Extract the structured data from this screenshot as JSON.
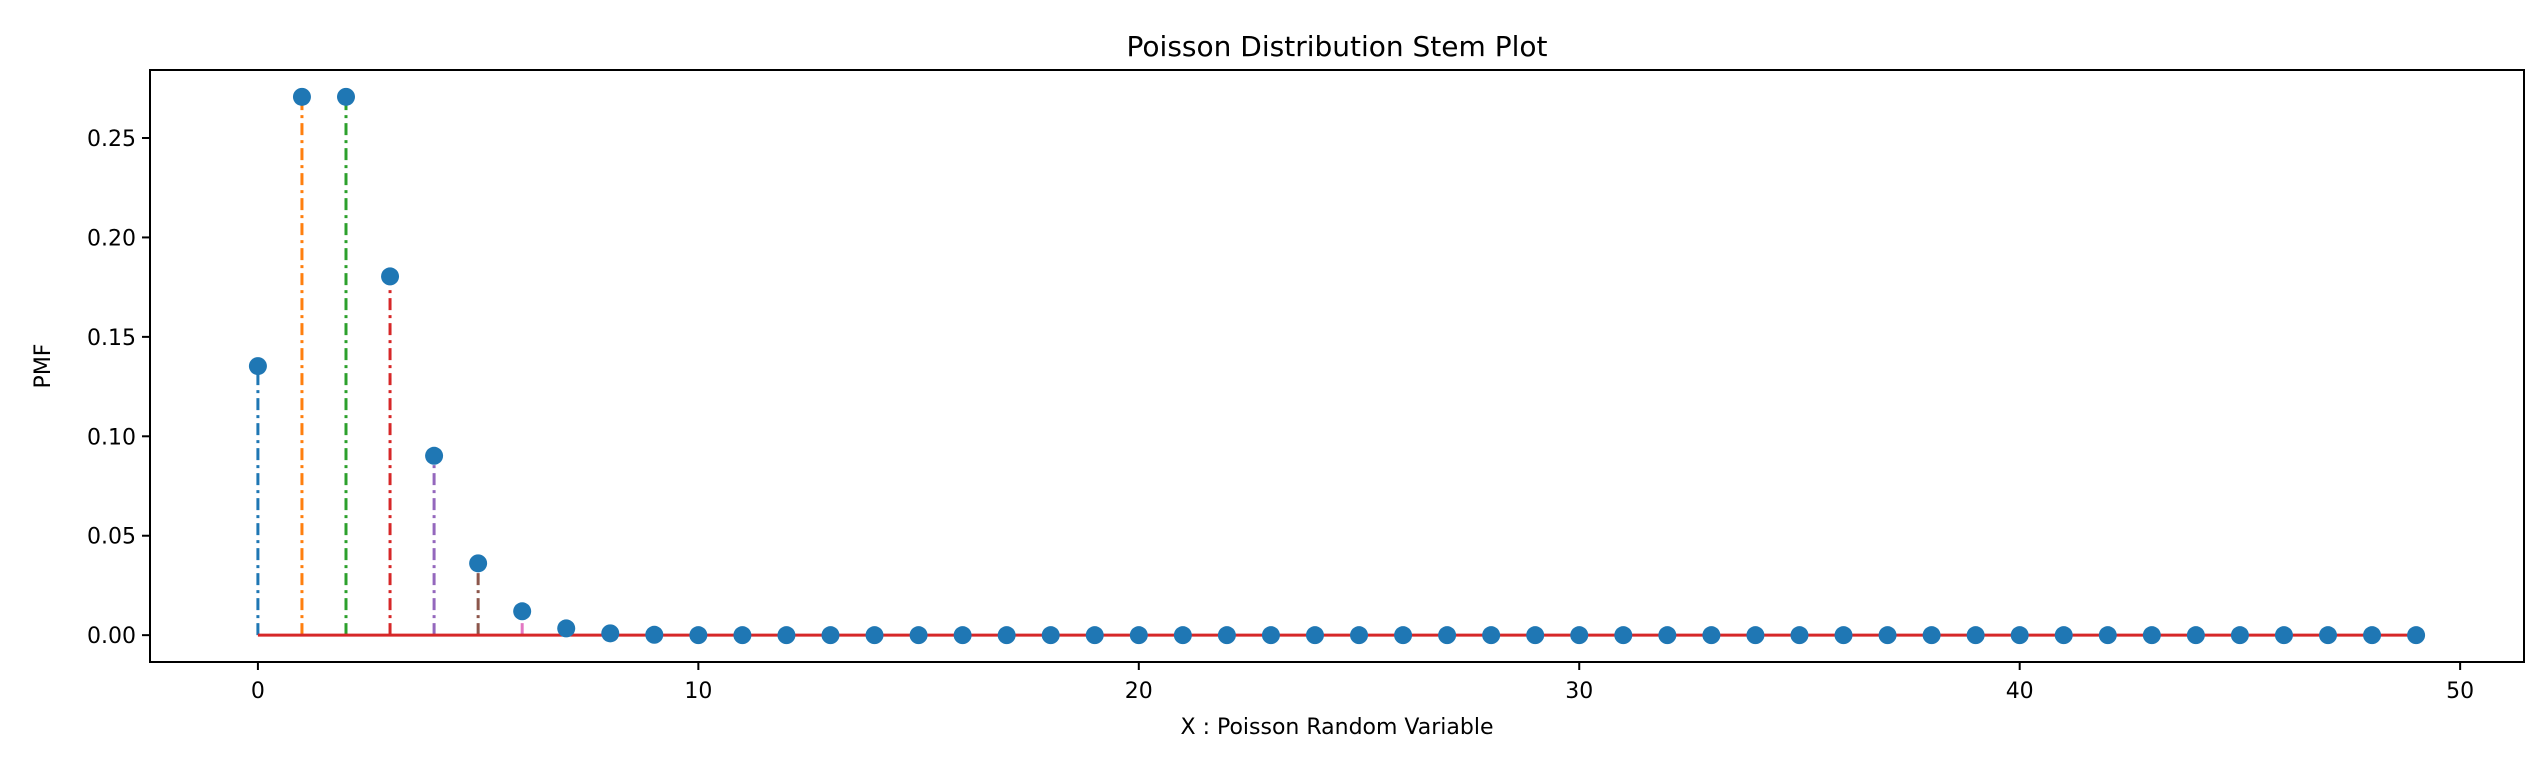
{
  "chart_data": {
    "type": "stem",
    "title": "Poisson Distribution Stem Plot",
    "xlabel": "X : Poisson Random Variable",
    "ylabel": "PMF",
    "x": [
      0,
      1,
      2,
      3,
      4,
      5,
      6,
      7,
      8,
      9,
      10,
      11,
      12,
      13,
      14,
      15,
      16,
      17,
      18,
      19,
      20,
      21,
      22,
      23,
      24,
      25,
      26,
      27,
      28,
      29,
      30,
      31,
      32,
      33,
      34,
      35,
      36,
      37,
      38,
      39,
      40,
      41,
      42,
      43,
      44,
      45,
      46,
      47,
      48,
      49
    ],
    "y": [
      0.1353,
      0.2707,
      0.2707,
      0.1804,
      0.0902,
      0.0361,
      0.012,
      0.0034,
      0.0009,
      0.0002,
      0,
      0,
      0,
      0,
      0,
      0,
      0,
      0,
      0,
      0,
      0,
      0,
      0,
      0,
      0,
      0,
      0,
      0,
      0,
      0,
      0,
      0,
      0,
      0,
      0,
      0,
      0,
      0,
      0,
      0,
      0,
      0,
      0,
      0,
      0,
      0,
      0,
      0,
      0,
      0
    ],
    "xlim": [
      -2.45,
      51.45
    ],
    "ylim": [
      -0.0135,
      0.2842
    ],
    "xticks": [
      0,
      10,
      20,
      30,
      40,
      50
    ],
    "xtick_labels": [
      "0",
      "10",
      "20",
      "30",
      "40",
      "50"
    ],
    "yticks": [
      0,
      0.05,
      0.1,
      0.15,
      0.2,
      0.25
    ],
    "ytick_labels": [
      "0.00",
      "0.05",
      "0.10",
      "0.15",
      "0.20",
      "0.25"
    ],
    "grid": false,
    "legend": "none",
    "line_style": "dash-dot",
    "stem_colors": [
      "#1f77b4",
      "#ff7f0e",
      "#2ca02c",
      "#d62728",
      "#9467bd",
      "#8c564b",
      "#e377c2",
      "#7f7f7f",
      "#bcbd22",
      "#17becf"
    ],
    "marker_color": "#1f77b4",
    "baseline_color": "#d62728"
  }
}
